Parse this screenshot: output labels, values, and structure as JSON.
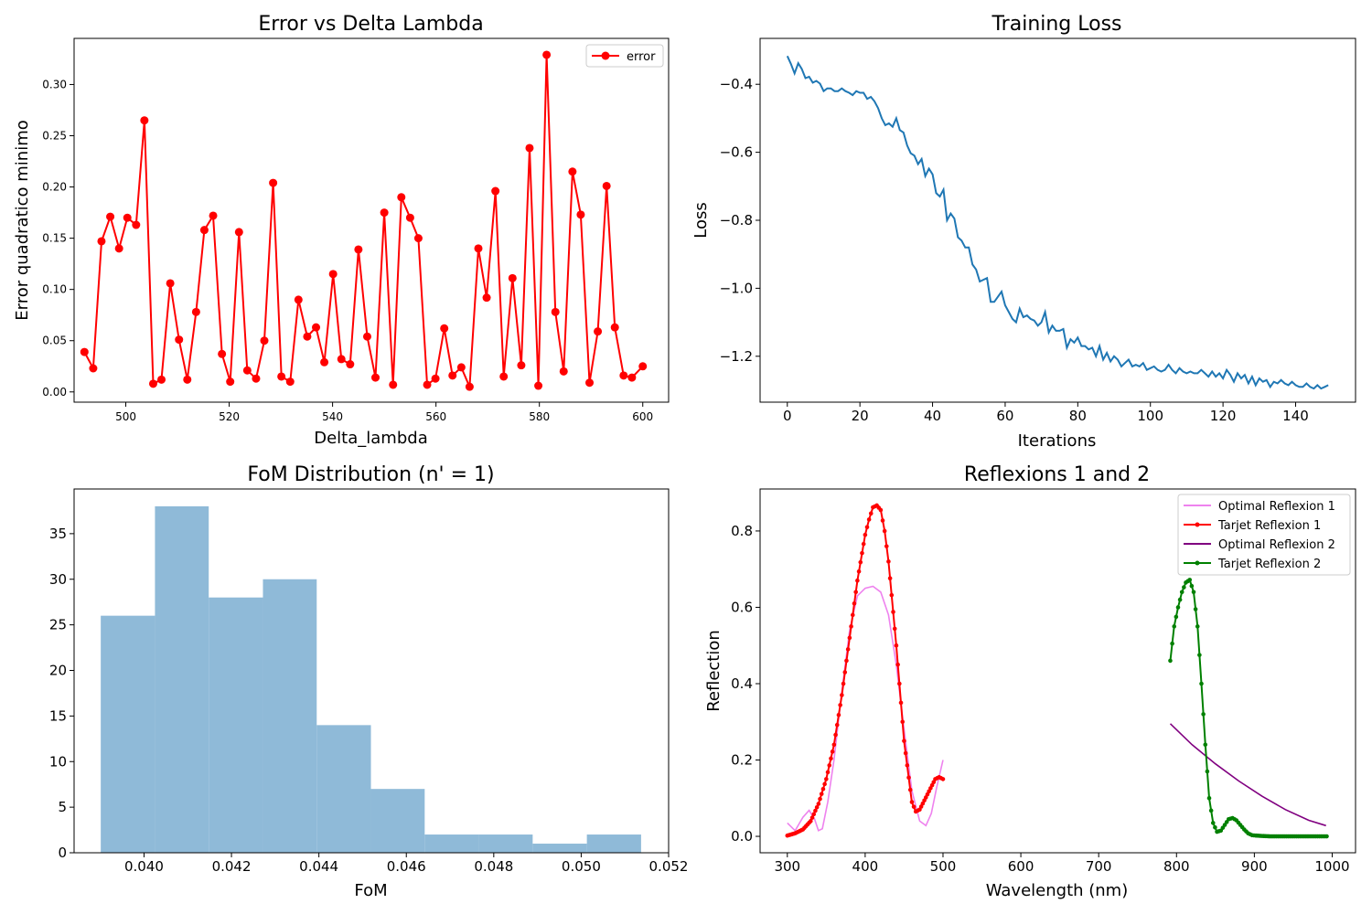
{
  "chart_data": [
    {
      "type": "line",
      "title": "Error vs Delta Lambda",
      "xlabel": "Delta_lambda",
      "ylabel": "Error quadratico minimo",
      "xlim": [
        490,
        605
      ],
      "ylim": [
        -0.01,
        0.345
      ],
      "xticks": [
        500,
        520,
        540,
        560,
        580,
        600
      ],
      "yticks": [
        0.0,
        0.05,
        0.1,
        0.15,
        0.2,
        0.25,
        0.3
      ],
      "ytick_labels": [
        "0.00",
        "0.05",
        "0.10",
        "0.15",
        "0.20",
        "0.25",
        "0.30"
      ],
      "legend": "top-right",
      "grid": false,
      "series": [
        {
          "name": "error",
          "color": "#ff0000",
          "marker": "circle",
          "x": [
            492.0,
            493.7,
            495.3,
            497.0,
            498.7,
            500.3,
            502.0,
            503.6,
            505.3,
            506.9,
            508.6,
            510.3,
            511.9,
            513.6,
            515.2,
            516.9,
            518.6,
            520.2,
            521.9,
            523.5,
            525.2,
            526.8,
            528.5,
            530.1,
            531.8,
            533.4,
            535.1,
            536.8,
            538.4,
            540.1,
            541.7,
            543.4,
            545.0,
            546.7,
            548.3,
            550.0,
            551.7,
            553.3,
            555.0,
            556.6,
            558.3,
            559.9,
            561.6,
            563.2,
            564.9,
            566.5,
            568.2,
            569.8,
            571.5,
            573.1,
            574.8,
            576.5,
            578.1,
            579.8,
            581.4,
            583.1,
            584.7,
            586.4,
            588.0,
            589.7,
            591.3,
            593.0,
            594.6,
            596.3,
            597.9,
            600.0
          ],
          "y": [
            0.039,
            0.023,
            0.147,
            0.171,
            0.14,
            0.17,
            0.163,
            0.265,
            0.008,
            0.012,
            0.106,
            0.051,
            0.012,
            0.078,
            0.158,
            0.172,
            0.037,
            0.01,
            0.156,
            0.021,
            0.013,
            0.05,
            0.204,
            0.015,
            0.01,
            0.09,
            0.054,
            0.063,
            0.029,
            0.115,
            0.032,
            0.027,
            0.139,
            0.054,
            0.014,
            0.175,
            0.007,
            0.19,
            0.17,
            0.15,
            0.007,
            0.013,
            0.062,
            0.016,
            0.024,
            0.005,
            0.14,
            0.092,
            0.196,
            0.015,
            0.111,
            0.026,
            0.238,
            0.006,
            0.329,
            0.078,
            0.02,
            0.215,
            0.173,
            0.009,
            0.059,
            0.201,
            0.063,
            0.016,
            0.014,
            0.025
          ]
        }
      ]
    },
    {
      "type": "line",
      "title": "Training Loss",
      "xlabel": "Iterations",
      "ylabel": "Loss",
      "xlim": [
        -7.5,
        156.5
      ],
      "ylim": [
        -1.335,
        -0.265
      ],
      "xticks": [
        0,
        20,
        40,
        60,
        80,
        100,
        120,
        140
      ],
      "yticks": [
        -1.2,
        -1.0,
        -0.8,
        -0.6,
        -0.4
      ],
      "ytick_labels": [
        "−1.2",
        "−1.0",
        "−0.8",
        "−0.6",
        "−0.4"
      ],
      "grid": false,
      "series": [
        {
          "color": "#1f77b4",
          "x_start": 0,
          "y": [
            -0.317,
            -0.34,
            -0.368,
            -0.338,
            -0.355,
            -0.382,
            -0.378,
            -0.395,
            -0.39,
            -0.398,
            -0.42,
            -0.412,
            -0.412,
            -0.42,
            -0.42,
            -0.412,
            -0.42,
            -0.425,
            -0.432,
            -0.42,
            -0.425,
            -0.425,
            -0.443,
            -0.437,
            -0.45,
            -0.47,
            -0.5,
            -0.52,
            -0.515,
            -0.525,
            -0.5,
            -0.535,
            -0.542,
            -0.58,
            -0.603,
            -0.61,
            -0.635,
            -0.62,
            -0.67,
            -0.648,
            -0.665,
            -0.72,
            -0.73,
            -0.71,
            -0.8,
            -0.78,
            -0.795,
            -0.85,
            -0.86,
            -0.88,
            -0.88,
            -0.93,
            -0.945,
            -0.98,
            -0.975,
            -0.97,
            -1.04,
            -1.04,
            -1.025,
            -1.01,
            -1.05,
            -1.07,
            -1.09,
            -1.1,
            -1.06,
            -1.085,
            -1.08,
            -1.09,
            -1.095,
            -1.11,
            -1.1,
            -1.07,
            -1.13,
            -1.11,
            -1.125,
            -1.125,
            -1.12,
            -1.175,
            -1.15,
            -1.16,
            -1.145,
            -1.17,
            -1.17,
            -1.18,
            -1.175,
            -1.2,
            -1.17,
            -1.21,
            -1.19,
            -1.215,
            -1.2,
            -1.21,
            -1.23,
            -1.22,
            -1.21,
            -1.23,
            -1.225,
            -1.23,
            -1.22,
            -1.24,
            -1.235,
            -1.23,
            -1.24,
            -1.245,
            -1.24,
            -1.225,
            -1.24,
            -1.25,
            -1.235,
            -1.245,
            -1.25,
            -1.245,
            -1.25,
            -1.25,
            -1.24,
            -1.25,
            -1.26,
            -1.245,
            -1.26,
            -1.25,
            -1.265,
            -1.24,
            -1.255,
            -1.275,
            -1.25,
            -1.265,
            -1.255,
            -1.28,
            -1.26,
            -1.285,
            -1.265,
            -1.275,
            -1.27,
            -1.29,
            -1.275,
            -1.28,
            -1.27,
            -1.28,
            -1.285,
            -1.275,
            -1.285,
            -1.29,
            -1.29,
            -1.28,
            -1.29,
            -1.295,
            -1.285,
            -1.295,
            -1.29,
            -1.285
          ]
        }
      ]
    },
    {
      "type": "histogram",
      "title": "FoM Distribution (n' = 1)",
      "xlabel": "FoM",
      "ylabel": "",
      "xlim": [
        0.0384,
        0.052
      ],
      "ylim": [
        0,
        39.9
      ],
      "xticks": [
        0.04,
        0.042,
        0.044,
        0.046,
        0.048,
        0.05,
        0.052
      ],
      "xtick_labels": [
        "0.040",
        "0.042",
        "0.044",
        "0.046",
        "0.048",
        "0.050",
        "0.052"
      ],
      "yticks": [
        0,
        5,
        10,
        15,
        20,
        25,
        30,
        35
      ],
      "color": "#8fbad8",
      "bin_edges": [
        0.03901,
        0.04025,
        0.04148,
        0.04272,
        0.04395,
        0.04519,
        0.04642,
        0.04766,
        0.04889,
        0.05013,
        0.05137
      ],
      "values": [
        26,
        38,
        28,
        30,
        14,
        7,
        2,
        2,
        1,
        2
      ]
    },
    {
      "type": "line",
      "title": "Reflexions 1 and 2",
      "xlabel": "Wavelength (nm)",
      "ylabel": "Reflection",
      "xlim": [
        265,
        1030
      ],
      "ylim": [
        -0.043,
        0.91
      ],
      "xticks": [
        300,
        400,
        500,
        600,
        700,
        800,
        900,
        1000
      ],
      "yticks": [
        0.0,
        0.2,
        0.4,
        0.6,
        0.8
      ],
      "ytick_labels": [
        "0.0",
        "0.2",
        "0.4",
        "0.6",
        "0.8"
      ],
      "legend": "top-right",
      "grid": false,
      "series": [
        {
          "name": "Optimal Reflexion 1",
          "color": "#ee82ee",
          "marker": "none",
          "x": [
            300,
            310,
            320,
            328,
            335,
            340,
            345,
            352,
            360,
            370,
            380,
            390,
            400,
            410,
            420,
            430,
            440,
            450,
            460,
            470,
            478,
            485,
            492,
            500
          ],
          "y": [
            0.035,
            0.015,
            0.05,
            0.068,
            0.045,
            0.015,
            0.02,
            0.09,
            0.2,
            0.38,
            0.54,
            0.63,
            0.65,
            0.655,
            0.64,
            0.58,
            0.45,
            0.28,
            0.12,
            0.04,
            0.028,
            0.06,
            0.13,
            0.2
          ]
        },
        {
          "name": "Tarjet Reflexion 1",
          "color": "#ff0000",
          "marker": "dot",
          "x": [
            300,
            310,
            320,
            330,
            340,
            350,
            360,
            370,
            380,
            390,
            400,
            405,
            410,
            415,
            420,
            425,
            430,
            440,
            450,
            460,
            465,
            470,
            480,
            490,
            495,
            500
          ],
          "y": [
            0.002,
            0.008,
            0.018,
            0.04,
            0.085,
            0.15,
            0.24,
            0.37,
            0.52,
            0.67,
            0.79,
            0.83,
            0.862,
            0.867,
            0.855,
            0.8,
            0.72,
            0.5,
            0.25,
            0.09,
            0.065,
            0.07,
            0.11,
            0.15,
            0.155,
            0.15
          ]
        },
        {
          "name": "Optimal Reflexion 2",
          "color": "#800080",
          "marker": "none",
          "x": [
            792,
            820,
            850,
            880,
            910,
            940,
            970,
            992
          ],
          "y": [
            0.295,
            0.24,
            0.19,
            0.145,
            0.105,
            0.07,
            0.042,
            0.028
          ]
        },
        {
          "name": "Tarjet Reflexion 2",
          "color": "#008000",
          "marker": "dot",
          "x": [
            792,
            797,
            802,
            807,
            812,
            817,
            822,
            827,
            832,
            837,
            842,
            847,
            852,
            857,
            862,
            867,
            872,
            877,
            882,
            887,
            892,
            897,
            902,
            910,
            920,
            935,
            950,
            970,
            993
          ],
          "y": [
            0.46,
            0.55,
            0.6,
            0.64,
            0.665,
            0.672,
            0.64,
            0.55,
            0.4,
            0.24,
            0.1,
            0.035,
            0.012,
            0.015,
            0.03,
            0.045,
            0.048,
            0.042,
            0.03,
            0.018,
            0.008,
            0.003,
            0.002,
            0.001,
            0.0,
            0.0,
            0.0,
            0.0,
            0.0
          ]
        }
      ]
    }
  ]
}
